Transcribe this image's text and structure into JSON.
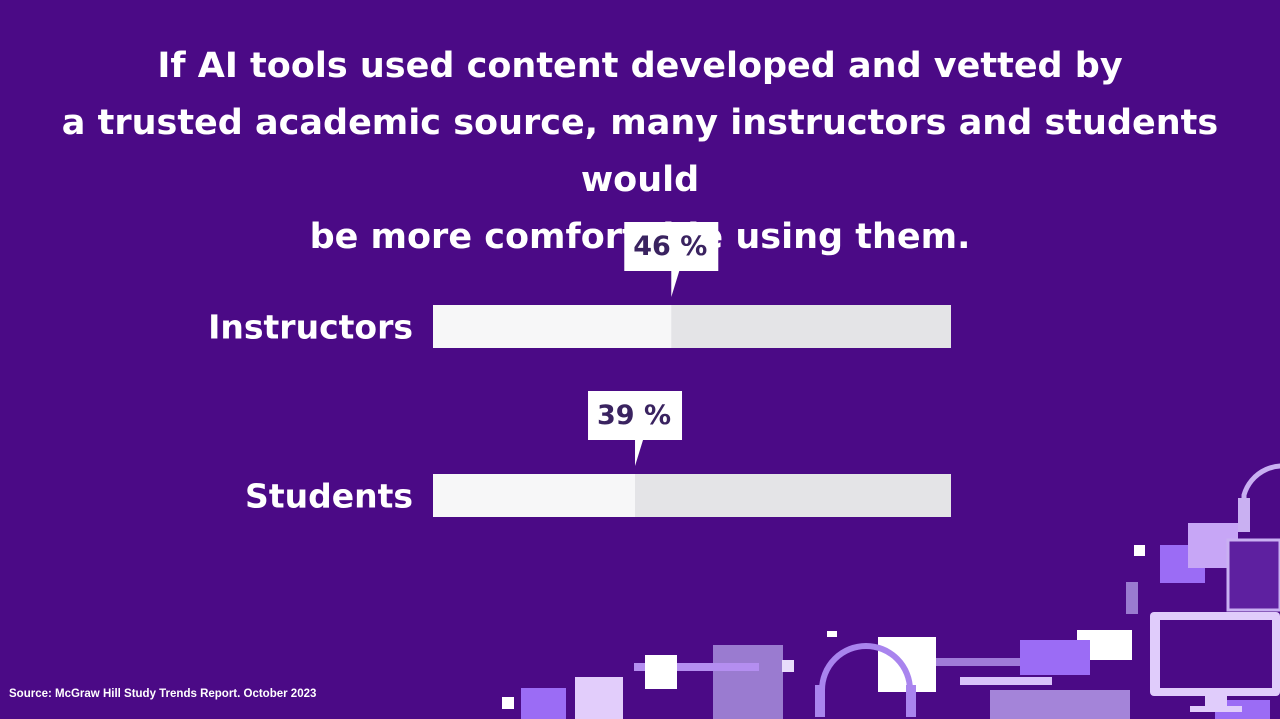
{
  "title_lines": [
    "If AI tools used content developed and vetted by",
    "a trusted academic source, many instructors and students would",
    "be more comfortable using them."
  ],
  "source": "Source: McGraw Hill Study Trends Report. October 2023",
  "colors": {
    "background": "#4b0a86",
    "bar_fill": "#f7f7f8",
    "bar_track": "#e4e4e7",
    "callout_bg": "#ffffff",
    "callout_text": "#3a2360"
  },
  "chart_data": {
    "type": "bar",
    "orientation": "horizontal",
    "title": "If AI tools used content developed and vetted by a trusted academic source, many instructors and students would be more comfortable using them.",
    "categories": [
      "Instructors",
      "Students"
    ],
    "values": [
      46,
      39
    ],
    "value_labels": [
      "46 %",
      "39 %"
    ],
    "xlim": [
      0,
      100
    ],
    "unit": "%",
    "grid": false,
    "legend": "none"
  }
}
